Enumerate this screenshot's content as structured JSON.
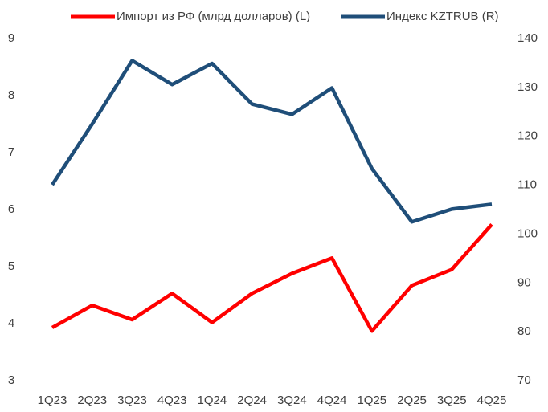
{
  "chart_data": {
    "type": "line",
    "categories": [
      "1Q23",
      "2Q23",
      "3Q23",
      "4Q23",
      "1Q24",
      "2Q24",
      "3Q24",
      "4Q24",
      "1Q25",
      "2Q25",
      "3Q25",
      "4Q25"
    ],
    "series": [
      {
        "name": "Импорт из РФ (млрд долларов) (L)",
        "color": "#ff0000",
        "axis": "y",
        "values": [
          3.93,
          4.32,
          4.07,
          4.53,
          4.02,
          4.53,
          4.88,
          5.15,
          3.87,
          4.67,
          4.95,
          5.74
        ]
      },
      {
        "name": "Индекс KZTRUB (R)",
        "color": "#1f4e79",
        "axis": "y2",
        "values": [
          110.1,
          122.5,
          135.5,
          130.6,
          134.9,
          126.6,
          124.5,
          129.9,
          113.4,
          102.5,
          105.1,
          106.1
        ]
      }
    ],
    "ylim": [
      3,
      9
    ],
    "yticks": [
      3,
      4,
      5,
      6,
      7,
      8,
      9
    ],
    "y2lim": [
      70,
      140
    ],
    "y2ticks": [
      70,
      80,
      90,
      100,
      110,
      120,
      130,
      140
    ],
    "grid": false
  }
}
